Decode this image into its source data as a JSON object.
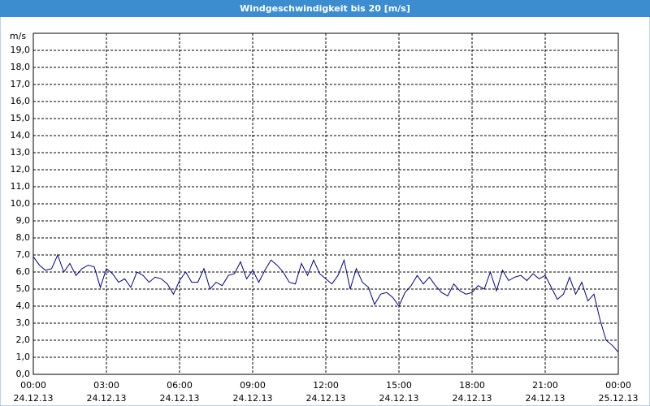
{
  "chart_data": {
    "type": "line",
    "title": "Windgeschwindigkeit bis 20 [m/s]",
    "y_label": "m/s",
    "x": [
      0,
      0.25,
      0.5,
      0.75,
      1,
      1.25,
      1.5,
      1.75,
      2,
      2.25,
      2.5,
      2.75,
      3,
      3.25,
      3.5,
      3.75,
      4,
      4.25,
      4.5,
      4.75,
      5,
      5.25,
      5.5,
      5.75,
      6,
      6.25,
      6.5,
      6.75,
      7,
      7.25,
      7.5,
      7.75,
      8,
      8.25,
      8.5,
      8.75,
      9,
      9.25,
      9.5,
      9.75,
      10,
      10.25,
      10.5,
      10.75,
      11,
      11.25,
      11.5,
      11.75,
      12,
      12.25,
      12.5,
      12.75,
      13,
      13.25,
      13.5,
      13.75,
      14,
      14.25,
      14.5,
      14.75,
      15,
      15.25,
      15.5,
      15.75,
      16,
      16.25,
      16.5,
      16.75,
      17,
      17.25,
      17.5,
      17.75,
      18,
      18.25,
      18.5,
      18.75,
      19,
      19.25,
      19.5,
      19.75,
      20,
      20.25,
      20.5,
      20.75,
      21,
      21.25,
      21.5,
      21.75,
      22,
      22.25,
      22.5,
      22.75,
      23,
      23.25,
      23.5,
      23.75,
      24
    ],
    "series": [
      {
        "name": "Windgeschwindigkeit",
        "color": "#00008b",
        "values": [
          6.9,
          6.4,
          6.1,
          6.2,
          7.0,
          6.0,
          6.5,
          5.8,
          6.2,
          6.4,
          6.3,
          5.1,
          6.2,
          5.9,
          5.4,
          5.6,
          5.1,
          6.0,
          5.8,
          5.4,
          5.7,
          5.6,
          5.3,
          4.7,
          5.5,
          6.0,
          5.4,
          5.4,
          6.2,
          5.0,
          5.4,
          5.2,
          5.8,
          5.9,
          6.6,
          5.6,
          6.1,
          5.4,
          6.1,
          6.7,
          6.4,
          6.0,
          5.4,
          5.3,
          6.5,
          5.8,
          6.7,
          5.9,
          5.6,
          5.3,
          5.8,
          6.7,
          5.0,
          6.2,
          5.4,
          5.1,
          4.1,
          4.7,
          4.8,
          4.5,
          4.0,
          4.8,
          5.2,
          5.8,
          5.3,
          5.7,
          5.2,
          4.8,
          4.6,
          5.3,
          4.9,
          4.7,
          4.8,
          5.2,
          5.0,
          6.0,
          4.9,
          6.1,
          5.5,
          5.7,
          5.8,
          5.5,
          5.9,
          5.6,
          5.8,
          5.1,
          4.4,
          4.7,
          5.7,
          4.7,
          5.4,
          4.3,
          4.7,
          3.2,
          2.0,
          1.7,
          1.3
        ]
      }
    ],
    "xlim": [
      0,
      24
    ],
    "xticks": [
      {
        "value": 0,
        "label": "00:00"
      },
      {
        "value": 3,
        "label": "03:00"
      },
      {
        "value": 6,
        "label": "06:00"
      },
      {
        "value": 9,
        "label": "09:00"
      },
      {
        "value": 12,
        "label": "12:00"
      },
      {
        "value": 15,
        "label": "15:00"
      },
      {
        "value": 18,
        "label": "18:00"
      },
      {
        "value": 21,
        "label": "21:00"
      },
      {
        "value": 24,
        "label": "00:00"
      }
    ],
    "xtick_dates": [
      "24.12.13",
      "24.12.13",
      "24.12.13",
      "24.12.13",
      "24.12.13",
      "24.12.13",
      "24.12.13",
      "24.12.13",
      "25.12.13"
    ],
    "ylim": [
      0,
      20
    ],
    "yticks": [
      {
        "value": 0,
        "label": "0,0"
      },
      {
        "value": 1,
        "label": "1,0"
      },
      {
        "value": 2,
        "label": "2,0"
      },
      {
        "value": 3,
        "label": "3,0"
      },
      {
        "value": 4,
        "label": "4,0"
      },
      {
        "value": 5,
        "label": "5,0"
      },
      {
        "value": 6,
        "label": "6,0"
      },
      {
        "value": 7,
        "label": "7,0"
      },
      {
        "value": 8,
        "label": "8,0"
      },
      {
        "value": 9,
        "label": "9,0"
      },
      {
        "value": 10,
        "label": "10,0"
      },
      {
        "value": 11,
        "label": "11,0"
      },
      {
        "value": 12,
        "label": "12,0"
      },
      {
        "value": 13,
        "label": "13,0"
      },
      {
        "value": 14,
        "label": "14,0"
      },
      {
        "value": 15,
        "label": "15,0"
      },
      {
        "value": 16,
        "label": "16,0"
      },
      {
        "value": 17,
        "label": "17,0"
      },
      {
        "value": 18,
        "label": "18,0"
      },
      {
        "value": 19,
        "label": "19,0"
      }
    ],
    "grid": true
  }
}
